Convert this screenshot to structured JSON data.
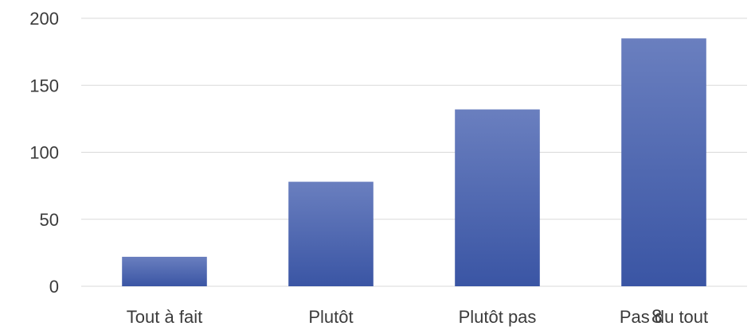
{
  "chart_data": {
    "type": "bar",
    "categories": [
      "Tout à fait",
      "Plutôt",
      "Plutôt pas",
      "Pas du tout"
    ],
    "values": [
      22,
      78,
      132,
      185
    ],
    "ylim": [
      0,
      200
    ],
    "yticks": [
      "0",
      "50",
      "100",
      "150",
      "200"
    ],
    "grid": true,
    "legend": "none",
    "title": "",
    "xlabel": "",
    "ylabel": "",
    "bar_color_top": "#6a7fbf",
    "bar_color_bottom": "#3a55a4"
  },
  "page_number": "8"
}
